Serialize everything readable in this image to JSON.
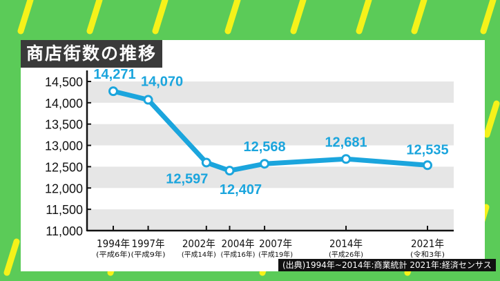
{
  "colors": {
    "background": "#5bcb58",
    "stripes": "#f5f21a",
    "line": "#1ba5dd",
    "band": "#e6e6e6",
    "title_bg": "#3a3a3a"
  },
  "chart_data": {
    "type": "line",
    "title": "商店街数の推移",
    "x": [
      1994,
      1997,
      2002,
      2004,
      2007,
      2014,
      2021
    ],
    "tick_labels": [
      "1994年",
      "1997年",
      "2002年",
      "2004年",
      "2007年",
      "2014年",
      "2021年"
    ],
    "tick_sublabels": [
      "(平成6年)",
      "(平成9年)",
      "(平成14年)",
      "(平成16年)",
      "(平成19年)",
      "(平成26年)",
      "(令和3年)"
    ],
    "values": [
      14271,
      14070,
      12597,
      12407,
      12568,
      12681,
      12535
    ],
    "data_labels": [
      "14,271",
      "14,070",
      "12,597",
      "12,407",
      "12,568",
      "12,681",
      "12,535"
    ],
    "ylim": [
      11000,
      14500
    ],
    "yticks": [
      11000,
      11500,
      12000,
      12500,
      13000,
      13500,
      14000,
      14500
    ],
    "ytick_labels": [
      "11,000",
      "11,500",
      "12,000",
      "12,500",
      "13,000",
      "13,500",
      "14,000",
      "14,500"
    ],
    "grid": "alternating horizontal bands"
  },
  "source": "(出典)1994年~2014年:商業統計 2021年:経済センサス"
}
